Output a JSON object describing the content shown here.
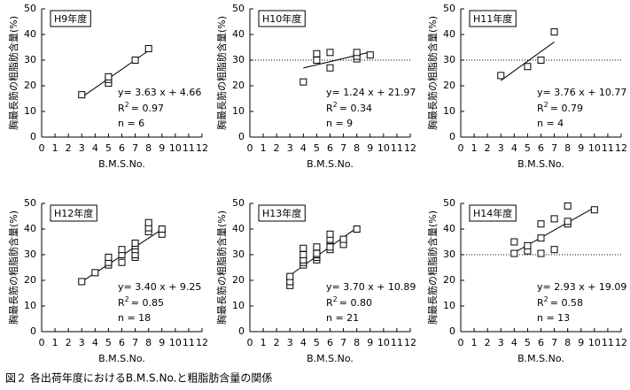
{
  "caption": "図２ 各出荷年度におけるB.M.S.No.と粗脂肪含量の関係",
  "chart_data": [
    {
      "type": "scatter",
      "title": "H9年度",
      "x_label": "B.M.S.No.",
      "y_label": "胸最長筋の粗脂肪含量(%)",
      "x": [
        3,
        5,
        5,
        5,
        7,
        8
      ],
      "values": [
        16.5,
        21,
        22.5,
        23.5,
        30,
        34.5
      ],
      "fit": {
        "slope": 3.63,
        "intercept": 4.66
      },
      "equation": "y= 3.63 x + 4.66",
      "r2_text": [
        "R",
        "2",
        "= 0.97"
      ],
      "n_text": "n = 6",
      "xlim": [
        0,
        12
      ],
      "ylim": [
        0,
        50
      ],
      "xticks": [
        0,
        1,
        2,
        3,
        4,
        5,
        6,
        7,
        8,
        9,
        10,
        11,
        12
      ],
      "yticks": [
        0,
        10,
        20,
        30,
        40,
        50
      ],
      "color": "#000000"
    },
    {
      "type": "scatter",
      "title": "H10年度",
      "x_label": "B.M.S.No.",
      "y_label": "胸最長筋の粗脂肪含量(%)",
      "x": [
        4,
        5,
        5,
        6,
        6,
        8,
        8,
        8,
        9
      ],
      "values": [
        21.5,
        30,
        32.5,
        27,
        33,
        30.5,
        31.5,
        33,
        32
      ],
      "fit": {
        "slope": 1.24,
        "intercept": 21.97
      },
      "equation": "y= 1.24 x + 21.97",
      "r2_text": [
        "R",
        "2",
        "= 0.34"
      ],
      "n_text": "n = 9",
      "ref_line": 30,
      "xlim": [
        0,
        12
      ],
      "ylim": [
        0,
        50
      ],
      "xticks": [
        0,
        1,
        2,
        3,
        4,
        5,
        6,
        7,
        8,
        9,
        10,
        11,
        12
      ],
      "yticks": [
        0,
        10,
        20,
        30,
        40,
        50
      ],
      "color": "#000000"
    },
    {
      "type": "scatter",
      "title": "H11年度",
      "x_label": "B.M.S.No.",
      "y_label": "胸最長筋の粗脂肪含量(%)",
      "x": [
        3,
        5,
        6,
        7
      ],
      "values": [
        24,
        27.5,
        30,
        41
      ],
      "fit": {
        "slope": 3.76,
        "intercept": 10.77
      },
      "equation": "y= 3.76 x + 10.77",
      "r2_text": [
        "R",
        "2",
        "= 0.79"
      ],
      "n_text": "n = 4",
      "ref_line": 30,
      "xlim": [
        0,
        12
      ],
      "ylim": [
        0,
        50
      ],
      "xticks": [
        0,
        1,
        2,
        3,
        4,
        5,
        6,
        7,
        8,
        9,
        10,
        11,
        12
      ],
      "yticks": [
        0,
        10,
        20,
        30,
        40,
        50
      ],
      "color": "#000000"
    },
    {
      "type": "scatter",
      "title": "H12年度",
      "x_label": "B.M.S.No.",
      "y_label": "胸最長筋の粗脂肪含量(%)",
      "x": [
        3,
        4,
        5,
        5,
        5,
        6,
        6,
        6,
        7,
        7,
        7,
        7,
        7,
        8,
        8,
        8,
        9,
        9
      ],
      "values": [
        19.5,
        23,
        26,
        27,
        29,
        27,
        30,
        32,
        29,
        30,
        32,
        33.5,
        34.5,
        39,
        40.5,
        42.5,
        38,
        40
      ],
      "fit": {
        "slope": 3.4,
        "intercept": 9.25
      },
      "equation": "y= 3.40 x + 9.25",
      "r2_text": [
        "R",
        "2",
        "= 0.85"
      ],
      "n_text": "n = 18",
      "xlim": [
        0,
        12
      ],
      "ylim": [
        0,
        50
      ],
      "xticks": [
        0,
        1,
        2,
        3,
        4,
        5,
        6,
        7,
        8,
        9,
        10,
        11,
        12
      ],
      "yticks": [
        0,
        10,
        20,
        30,
        40,
        50
      ],
      "color": "#000000"
    },
    {
      "type": "scatter",
      "title": "H13年度",
      "x_label": "B.M.S.No.",
      "y_label": "胸最長筋の粗脂肪含量(%)",
      "x": [
        3,
        3,
        3,
        4,
        4,
        4,
        4,
        4,
        5,
        5,
        5,
        5,
        5,
        6,
        6,
        6,
        6,
        6,
        7,
        7,
        8
      ],
      "values": [
        18,
        19.5,
        21.5,
        26,
        27,
        28,
        30,
        32.5,
        28,
        29,
        30,
        30.5,
        33,
        32,
        33,
        35.5,
        36,
        38,
        34,
        36,
        40
      ],
      "fit": {
        "slope": 3.7,
        "intercept": 10.89
      },
      "equation": "y= 3.70 x + 10.89",
      "r2_text": [
        "R",
        "2",
        "= 0.80"
      ],
      "n_text": "n = 21",
      "xlim": [
        0,
        12
      ],
      "ylim": [
        0,
        50
      ],
      "xticks": [
        0,
        1,
        2,
        3,
        4,
        5,
        6,
        7,
        8,
        9,
        10,
        11,
        12
      ],
      "yticks": [
        0,
        10,
        20,
        30,
        40,
        50
      ],
      "color": "#000000"
    },
    {
      "type": "scatter",
      "title": "H14年度",
      "x_label": "B.M.S.No.",
      "y_label": "胸最長筋の粗脂肪含量(%)",
      "x": [
        4,
        4,
        5,
        5,
        6,
        6,
        6,
        7,
        7,
        8,
        8,
        8,
        10
      ],
      "values": [
        30.5,
        35,
        31.5,
        33.5,
        30.5,
        36.5,
        42,
        32,
        44,
        42,
        43,
        49,
        47.5
      ],
      "fit": {
        "slope": 2.93,
        "intercept": 19.09
      },
      "equation": "y= 2.93 x + 19.09",
      "r2_text": [
        "R",
        "2",
        "= 0.58"
      ],
      "n_text": "n = 13",
      "ref_line": 30,
      "xlim": [
        0,
        12
      ],
      "ylim": [
        0,
        50
      ],
      "xticks": [
        0,
        1,
        2,
        3,
        4,
        5,
        6,
        7,
        8,
        9,
        10,
        11,
        12
      ],
      "yticks": [
        0,
        10,
        20,
        30,
        40,
        50
      ],
      "color": "#000000"
    }
  ]
}
